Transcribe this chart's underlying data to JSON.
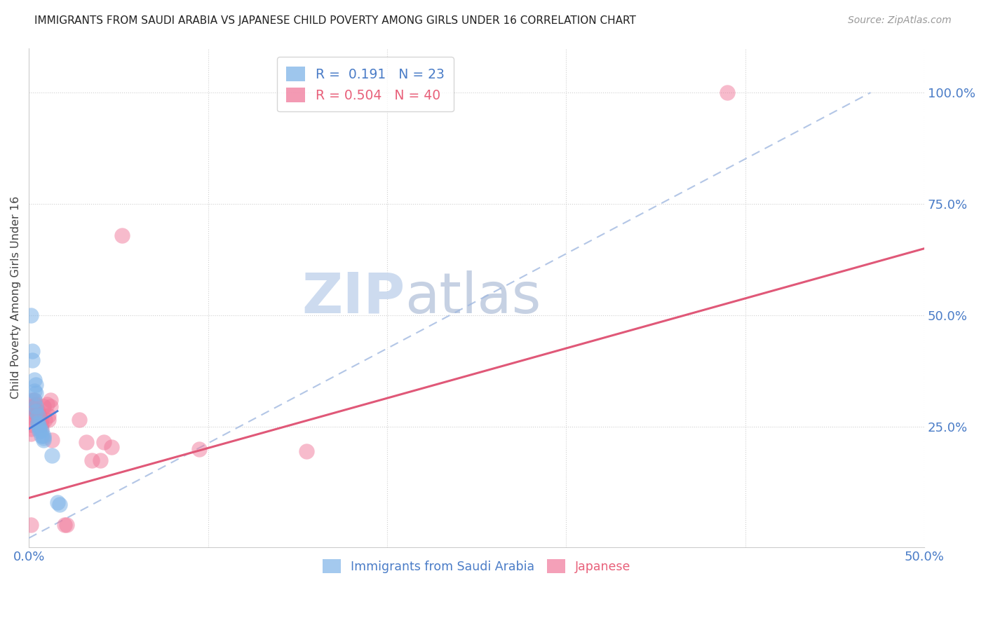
{
  "title": "IMMIGRANTS FROM SAUDI ARABIA VS JAPANESE CHILD POVERTY AMONG GIRLS UNDER 16 CORRELATION CHART",
  "source": "Source: ZipAtlas.com",
  "ylabel": "Child Poverty Among Girls Under 16",
  "xlim": [
    0.0,
    0.5
  ],
  "ylim": [
    -0.02,
    1.1
  ],
  "color_blue": "#7eb3e8",
  "color_pink": "#f0789a",
  "blue_scatter": [
    [
      0.001,
      0.5
    ],
    [
      0.002,
      0.42
    ],
    [
      0.002,
      0.4
    ],
    [
      0.003,
      0.355
    ],
    [
      0.003,
      0.33
    ],
    [
      0.003,
      0.31
    ],
    [
      0.004,
      0.345
    ],
    [
      0.004,
      0.325
    ],
    [
      0.004,
      0.295
    ],
    [
      0.004,
      0.285
    ],
    [
      0.005,
      0.275
    ],
    [
      0.005,
      0.26
    ],
    [
      0.005,
      0.255
    ],
    [
      0.006,
      0.25
    ],
    [
      0.006,
      0.245
    ],
    [
      0.006,
      0.24
    ],
    [
      0.007,
      0.24
    ],
    [
      0.007,
      0.23
    ],
    [
      0.008,
      0.23
    ],
    [
      0.008,
      0.225
    ],
    [
      0.008,
      0.22
    ],
    [
      0.013,
      0.185
    ],
    [
      0.016,
      0.08
    ],
    [
      0.017,
      0.075
    ]
  ],
  "pink_scatter": [
    [
      0.001,
      0.255
    ],
    [
      0.001,
      0.245
    ],
    [
      0.001,
      0.235
    ],
    [
      0.001,
      0.03
    ],
    [
      0.002,
      0.31
    ],
    [
      0.002,
      0.295
    ],
    [
      0.002,
      0.27
    ],
    [
      0.003,
      0.31
    ],
    [
      0.003,
      0.29
    ],
    [
      0.003,
      0.275
    ],
    [
      0.004,
      0.3
    ],
    [
      0.004,
      0.28
    ],
    [
      0.005,
      0.285
    ],
    [
      0.005,
      0.275
    ],
    [
      0.005,
      0.265
    ],
    [
      0.006,
      0.275
    ],
    [
      0.006,
      0.265
    ],
    [
      0.007,
      0.265
    ],
    [
      0.007,
      0.255
    ],
    [
      0.007,
      0.245
    ],
    [
      0.008,
      0.295
    ],
    [
      0.009,
      0.265
    ],
    [
      0.01,
      0.3
    ],
    [
      0.011,
      0.275
    ],
    [
      0.011,
      0.265
    ],
    [
      0.012,
      0.31
    ],
    [
      0.012,
      0.295
    ],
    [
      0.013,
      0.22
    ],
    [
      0.02,
      0.03
    ],
    [
      0.021,
      0.03
    ],
    [
      0.028,
      0.265
    ],
    [
      0.032,
      0.215
    ],
    [
      0.035,
      0.175
    ],
    [
      0.04,
      0.175
    ],
    [
      0.042,
      0.215
    ],
    [
      0.046,
      0.205
    ],
    [
      0.052,
      0.68
    ],
    [
      0.095,
      0.2
    ],
    [
      0.155,
      0.195
    ],
    [
      0.39,
      1.0
    ]
  ],
  "blue_line_x": [
    0.0,
    0.016
  ],
  "blue_line_y": [
    0.245,
    0.285
  ],
  "pink_line_x": [
    0.0,
    0.5
  ],
  "pink_line_y": [
    0.09,
    0.65
  ],
  "dashed_line_x": [
    0.0,
    0.47
  ],
  "dashed_line_y": [
    0.0,
    1.0
  ],
  "yticks": [
    0.0,
    0.25,
    0.5,
    0.75,
    1.0
  ],
  "ytick_labels": [
    "",
    "25.0%",
    "50.0%",
    "75.0%",
    "100.0%"
  ],
  "xticks": [
    0.0,
    0.1,
    0.2,
    0.3,
    0.4,
    0.5
  ],
  "xtick_labels": [
    "0.0%",
    "",
    "",
    "",
    "",
    "50.0%"
  ]
}
